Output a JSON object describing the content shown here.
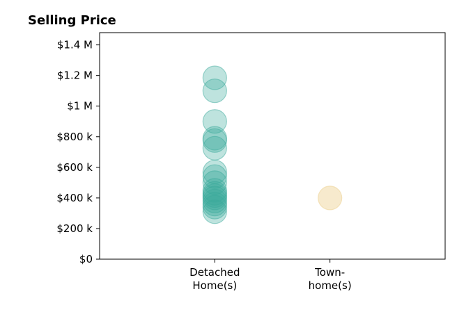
{
  "chart_data": {
    "type": "scatter",
    "title": "Selling Price",
    "xlabel": "",
    "ylabel": "",
    "categories": [
      {
        "lines": [
          "Detached",
          "Home(s)"
        ]
      },
      {
        "lines": [
          "Town-",
          "home(s)"
        ]
      }
    ],
    "yticks": [
      {
        "value": 0,
        "label": "$0"
      },
      {
        "value": 200000,
        "label": "$200 k"
      },
      {
        "value": 400000,
        "label": "$400 k"
      },
      {
        "value": 600000,
        "label": "$600 k"
      },
      {
        "value": 800000,
        "label": "$800 k"
      },
      {
        "value": 1000000,
        "label": "$1 M"
      },
      {
        "value": 1200000,
        "label": "$1.2 M"
      },
      {
        "value": 1400000,
        "label": "$1.4 M"
      }
    ],
    "ylim": [
      0,
      1480000
    ],
    "xlim": [
      -1,
      2
    ],
    "grid": false,
    "series": [
      {
        "category": 0,
        "color": "#3aa99a",
        "opacity": 0.33,
        "values": [
          1185000,
          1100000,
          900000,
          790000,
          775000,
          725000,
          570000,
          540000,
          500000,
          450000,
          430000,
          415000,
          400000,
          380000,
          360000,
          340000,
          310000
        ]
      },
      {
        "category": 1,
        "color": "#f0d9a4",
        "opacity": 0.55,
        "values": [
          400000
        ]
      }
    ]
  }
}
